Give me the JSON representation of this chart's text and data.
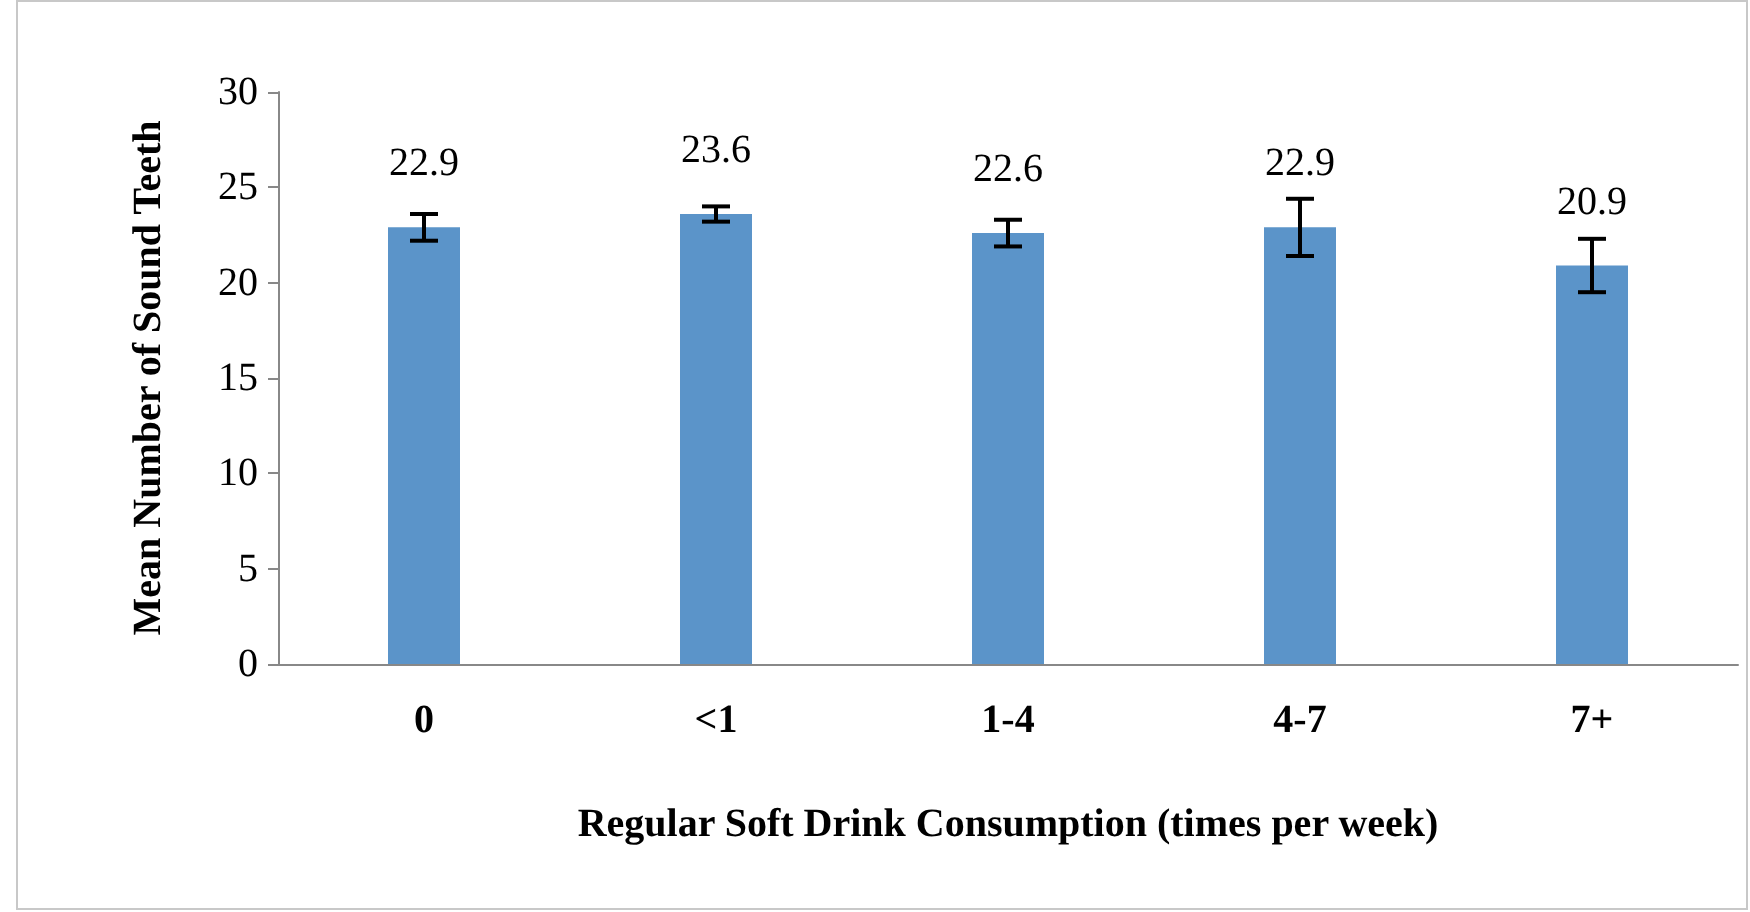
{
  "chart_data": {
    "type": "bar",
    "xlabel": "Regular Soft Drink Consumption (times per week)",
    "ylabel": "Mean Number of Sound Teeth",
    "categories": [
      "0",
      "<1",
      "1-4",
      "4-7",
      "7+"
    ],
    "values": [
      22.9,
      23.6,
      22.6,
      22.9,
      20.9
    ],
    "errors": [
      0.7,
      0.4,
      0.7,
      1.5,
      1.4
    ],
    "color": "#5b94c9",
    "ylim": [
      0,
      30
    ],
    "yticks": [
      0,
      5,
      10,
      15,
      20,
      25,
      30
    ],
    "grid": false,
    "data_labels": true
  }
}
